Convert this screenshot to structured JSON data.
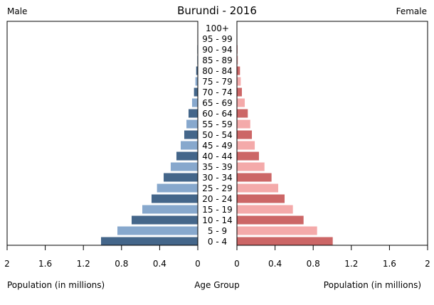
{
  "chart_data": {
    "type": "bar",
    "title": "Burundi - 2016",
    "left_label": "Male",
    "right_label": "Female",
    "xlabel_left": "Population (in millions)",
    "xlabel_center": "Age Group",
    "xlabel_right": "Population (in millions)",
    "xlim": [
      0,
      2
    ],
    "ticks": [
      "2",
      "1.6",
      "1.2",
      "0.8",
      "0.4",
      "0"
    ],
    "ticks_right": [
      "0",
      "0.4",
      "0.8",
      "1.2",
      "1.6",
      "2"
    ],
    "categories": [
      "0 - 4",
      "5 - 9",
      "10 - 14",
      "15 - 19",
      "20 - 24",
      "25 - 29",
      "30 - 34",
      "35 - 39",
      "40 - 44",
      "45 - 49",
      "50 - 54",
      "55 - 59",
      "60 - 64",
      "65 - 69",
      "70 - 74",
      "75 - 79",
      "80 - 84",
      "85 - 89",
      "90 - 94",
      "95 - 99",
      "100+"
    ],
    "series": [
      {
        "name": "Male",
        "values": [
          1.015,
          0.843,
          0.694,
          0.582,
          0.485,
          0.428,
          0.358,
          0.284,
          0.224,
          0.179,
          0.142,
          0.119,
          0.097,
          0.06,
          0.04,
          0.025,
          0.017,
          0.006,
          0.005,
          0.004,
          0.002
        ]
      },
      {
        "name": "Female",
        "values": [
          1.005,
          0.841,
          0.699,
          0.587,
          0.5,
          0.433,
          0.363,
          0.289,
          0.231,
          0.187,
          0.157,
          0.14,
          0.114,
          0.082,
          0.052,
          0.04,
          0.032,
          0.01,
          0.006,
          0.004,
          0.002
        ]
      }
    ],
    "colors": {
      "male_dark": "#44668a",
      "male_light": "#87a8cd",
      "female_dark": "#cc6666",
      "female_light": "#f4aaaa"
    }
  }
}
